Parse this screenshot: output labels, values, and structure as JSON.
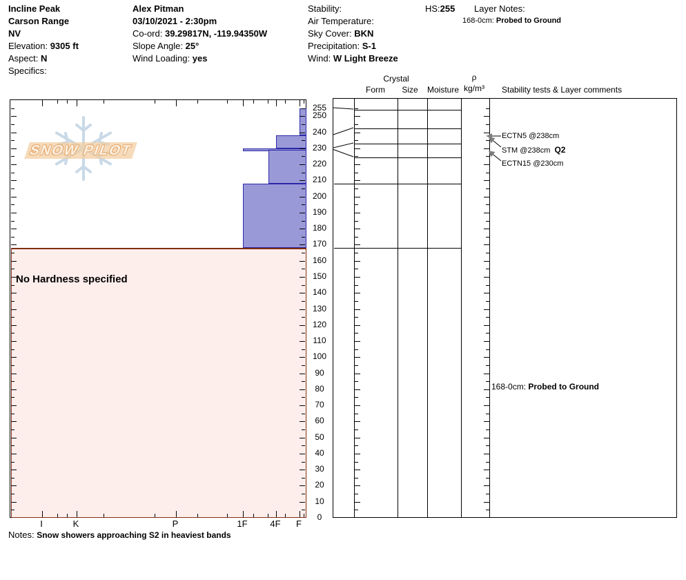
{
  "header": {
    "location": {
      "lines": [
        {
          "label": "",
          "value": "Incline Peak"
        },
        {
          "label": "",
          "value": "Carson Range"
        },
        {
          "label": "",
          "value": "NV"
        },
        {
          "label": "Elevation: ",
          "value": "9305 ft"
        },
        {
          "label": "Aspect: ",
          "value": "N"
        },
        {
          "label": "Specifics:",
          "value": ""
        }
      ]
    },
    "observer": {
      "lines": [
        {
          "label": "",
          "value": "Alex Pitman"
        },
        {
          "label": "",
          "value": "03/10/2021 - 2:30pm"
        },
        {
          "label": "Co-ord: ",
          "value": "39.29817N, -119.94350W"
        },
        {
          "label": "Slope Angle: ",
          "value": "25°"
        },
        {
          "label": "Wind Loading: ",
          "value": "yes"
        }
      ]
    },
    "conditions": {
      "lines": [
        {
          "label": "Stability:",
          "value": ""
        },
        {
          "label": "Air Temperature:",
          "value": ""
        },
        {
          "label": "Sky Cover: ",
          "value": "BKN"
        },
        {
          "label": "Precipitation: ",
          "value": "S-1"
        },
        {
          "label": "Wind:  ",
          "value": "W Light Breeze"
        }
      ]
    },
    "hs": {
      "label": "HS:",
      "value": "255"
    },
    "layer_notes": {
      "title": "Layer Notes:",
      "note_label": "168-0cm: ",
      "note_value": "Probed to Ground"
    }
  },
  "watermark": {
    "text": "SNOW PILOT"
  },
  "columns": {
    "form": "Form",
    "crystal": "Crystal",
    "size": "Size",
    "moisture": "Moisture",
    "density_rho": "ρ",
    "density_units": "kg/m³",
    "stability": "Stability tests & Layer comments"
  },
  "chart_data": {
    "type": "bar",
    "title": "Snow pit hardness profile",
    "orientation": "horizontal-bars-vs-depth",
    "depth_axis": {
      "unit": "cm",
      "min": 0,
      "max": 255,
      "tick_interval_cm": 5,
      "label_interval_cm": 10,
      "tick_labels": [
        255,
        250,
        240,
        230,
        220,
        210,
        200,
        190,
        180,
        170,
        160,
        150,
        140,
        130,
        120,
        110,
        100,
        90,
        80,
        70,
        60,
        50,
        40,
        30,
        20,
        10,
        0
      ]
    },
    "hardness_axis": {
      "categories": [
        "I",
        "K",
        "P",
        "1F",
        "4F",
        "F"
      ],
      "order": "hardest (I) at left, softest (F) at right"
    },
    "hs_cm": 255,
    "layers": [
      {
        "top_cm": 255,
        "bottom_cm": 238,
        "hardness": "F"
      },
      {
        "top_cm": 238,
        "bottom_cm": 230,
        "hardness": "4F"
      },
      {
        "top_cm": 230,
        "bottom_cm": 229,
        "hardness": "1F"
      },
      {
        "top_cm": 229,
        "bottom_cm": 208,
        "hardness": "4F+"
      },
      {
        "top_cm": 208,
        "bottom_cm": 168,
        "hardness": "1F"
      },
      {
        "top_cm": 168,
        "bottom_cm": 0,
        "hardness": null,
        "note": "No Hardness specified",
        "comment": "Probed to Ground"
      }
    ],
    "stability_tests": [
      {
        "label": "ECTN5 @238cm",
        "quality": ""
      },
      {
        "label": "STM @238cm",
        "quality": "Q2"
      },
      {
        "label": "ECTN15 @230cm",
        "quality": ""
      }
    ],
    "layer_comment": {
      "label": "168-0cm: ",
      "value": "Probed to Ground"
    },
    "colors": {
      "bar_fill": "#9a99d8",
      "bar_border": "#2a28a8",
      "no_hardness_fill": "#fdeeec",
      "no_hardness_border": "#802d12",
      "watermark_flake": "#c9d9e7",
      "watermark_banner": "#f3cda0",
      "arrow_gray": "#7d7d7d"
    }
  },
  "notes": {
    "label": "Notes: ",
    "value": "Snow showers approaching S2 in heaviest bands"
  }
}
